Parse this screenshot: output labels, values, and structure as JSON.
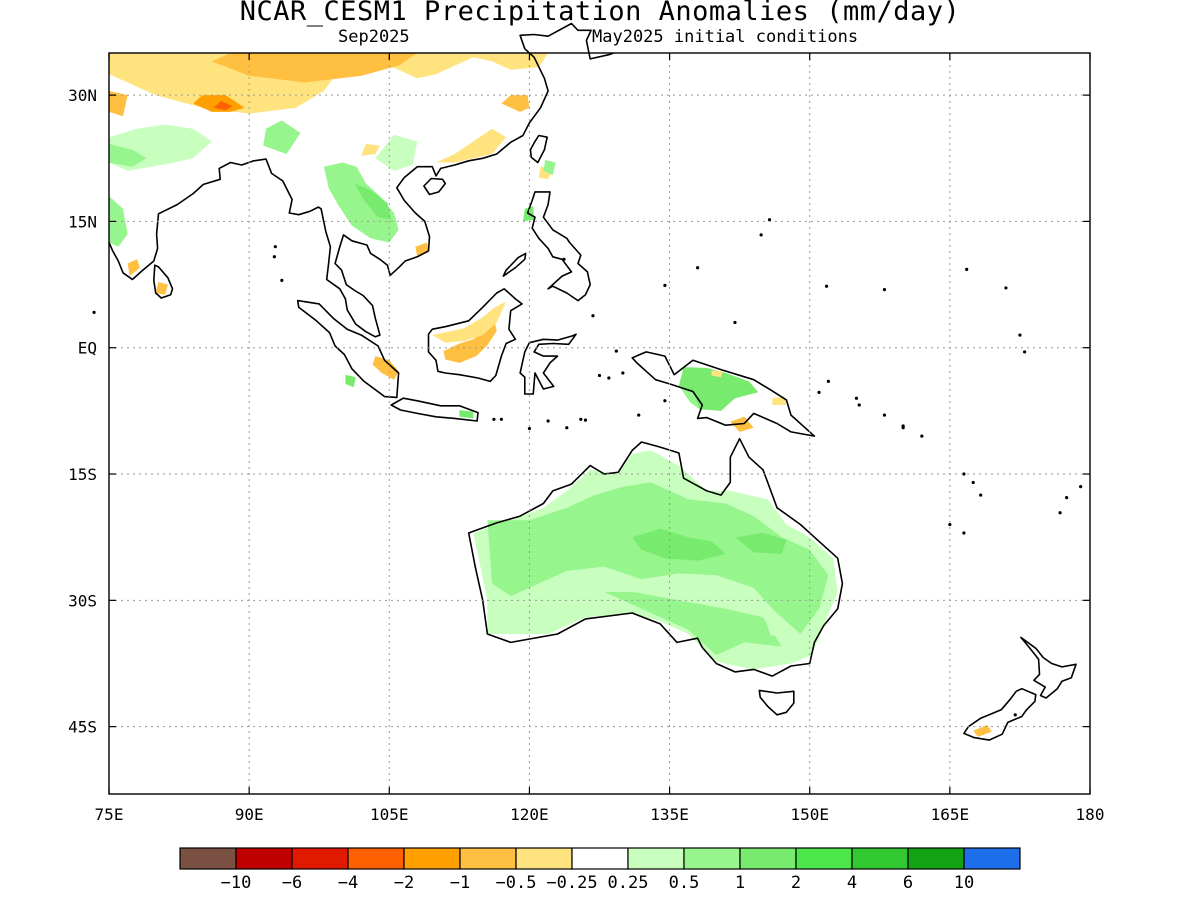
{
  "title": "NCAR_CESM1 Precipitation Anomalies (mm/day)",
  "subtitle_left": "Sep2025",
  "subtitle_right": "May2025 initial conditions",
  "map": {
    "projection": "cylindrical equidistant",
    "lon_range": [
      75,
      180
    ],
    "lat_range": [
      -53,
      35
    ],
    "grid": "dotted",
    "lon_ticks": [
      {
        "value": 75,
        "label": "75E"
      },
      {
        "value": 90,
        "label": "90E"
      },
      {
        "value": 105,
        "label": "105E"
      },
      {
        "value": 120,
        "label": "120E"
      },
      {
        "value": 135,
        "label": "135E"
      },
      {
        "value": 150,
        "label": "150E"
      },
      {
        "value": 165,
        "label": "165E"
      },
      {
        "value": 180,
        "label": "180"
      }
    ],
    "lat_ticks": [
      {
        "value": 30,
        "label": "30N"
      },
      {
        "value": 15,
        "label": "15N"
      },
      {
        "value": 0,
        "label": "EQ"
      },
      {
        "value": -15,
        "label": "15S"
      },
      {
        "value": -30,
        "label": "30S"
      },
      {
        "value": -45,
        "label": "45S"
      }
    ]
  },
  "colorbar": {
    "colors": [
      "#7a5143",
      "#c00000",
      "#e01a00",
      "#ff6000",
      "#ff9f00",
      "#ffbf40",
      "#ffe37f",
      "#ffffff",
      "#c8ffbe",
      "#96f58c",
      "#78eb6e",
      "#4ce64b",
      "#32c832",
      "#13a213",
      "#1e6eeb"
    ],
    "labels": [
      "−10",
      "−6",
      "−4",
      "−2",
      "−1",
      "−0.5",
      "−0.25",
      "0.25",
      "0.5",
      "1",
      "2",
      "4",
      "6",
      "10"
    ]
  },
  "regions": [
    {
      "name": "Australia",
      "lon": [
        114,
        153.5
      ],
      "lat": [
        -39,
        -11
      ]
    },
    {
      "name": "New Guinea",
      "lon": [
        131,
        151
      ],
      "lat": [
        -10.5,
        -1
      ]
    },
    {
      "name": "Borneo",
      "lon": [
        109,
        119
      ],
      "lat": [
        -4,
        7
      ]
    },
    {
      "name": "Sumatra",
      "lon": [
        95,
        106
      ],
      "lat": [
        -6,
        5.5
      ]
    },
    {
      "name": "Java",
      "lon": [
        105,
        115
      ],
      "lat": [
        -8.8,
        -6
      ]
    },
    {
      "name": "Sulawesi",
      "lon": [
        119,
        125
      ],
      "lat": [
        -5.5,
        1.5
      ]
    },
    {
      "name": "Philippines",
      "lon": [
        117,
        126.5
      ],
      "lat": [
        5.5,
        18.5
      ]
    },
    {
      "name": "Taiwan",
      "lon": [
        120,
        122
      ],
      "lat": [
        22,
        25.3
      ]
    },
    {
      "name": "Sri Lanka",
      "lon": [
        79.7,
        81.9
      ],
      "lat": [
        5.9,
        9.8
      ]
    },
    {
      "name": "Tasmania",
      "lon": [
        144.5,
        148.5
      ],
      "lat": [
        -43.6,
        -40.7
      ]
    },
    {
      "name": "New Zealand North",
      "lon": [
        172.5,
        178.5
      ],
      "lat": [
        -41.5,
        -34.5
      ]
    },
    {
      "name": "New Zealand South",
      "lon": [
        166.5,
        174.3
      ],
      "lat": [
        -46.7,
        -40.5
      ]
    },
    {
      "name": "Hainan",
      "lon": [
        108.6,
        111
      ],
      "lat": [
        18.2,
        20.1
      ]
    },
    {
      "name": "Asia mainland",
      "lon": [
        75,
        127
      ],
      "lat": [
        1.3,
        35
      ]
    }
  ]
}
